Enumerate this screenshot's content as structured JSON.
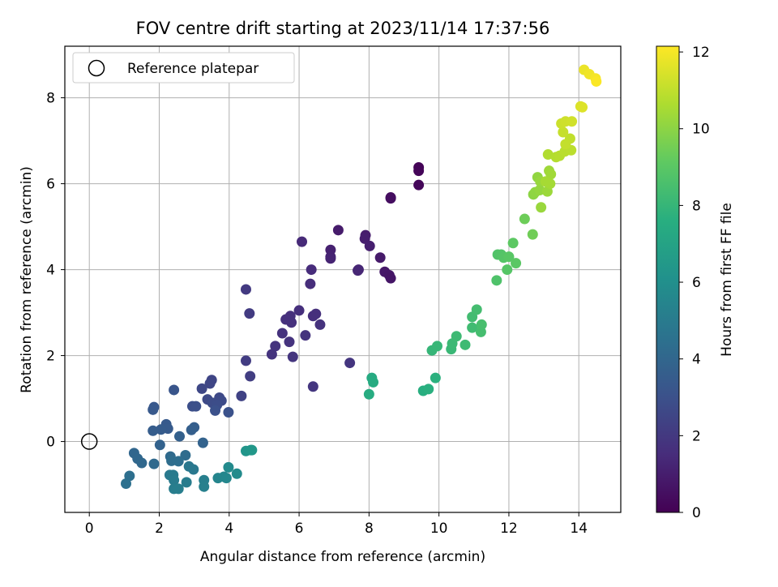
{
  "chart_data": {
    "type": "scatter",
    "title": "FOV centre drift starting at 2023/11/14 17:37:56",
    "xlabel": "Angular distance from reference (arcmin)",
    "ylabel": "Rotation from reference (arcmin)",
    "xlim": [
      -0.7,
      15.2
    ],
    "ylim": [
      -1.65,
      9.2
    ],
    "xticks": [
      "0",
      "2",
      "4",
      "6",
      "8",
      "10",
      "12",
      "14"
    ],
    "yticks": [
      "0",
      "2",
      "4",
      "6",
      "8"
    ],
    "grid": true,
    "legend": {
      "placement": "top-left",
      "entries": [
        "Reference platepar"
      ]
    },
    "reference_point": {
      "x": 0,
      "y": 0
    },
    "colorbar": {
      "label": "Hours from first FF file",
      "range": [
        0,
        12.15
      ],
      "ticks": [
        "0",
        "2",
        "4",
        "6",
        "8",
        "10",
        "12"
      ],
      "colormap": "viridis"
    },
    "points": [
      {
        "x": 9.42,
        "y": 6.38,
        "h": 0.1
      },
      {
        "x": 9.42,
        "y": 6.3,
        "h": 0.15
      },
      {
        "x": 9.42,
        "y": 5.97,
        "h": 0.2
      },
      {
        "x": 8.62,
        "y": 5.68,
        "h": 0.4
      },
      {
        "x": 8.62,
        "y": 5.66,
        "h": 0.45
      },
      {
        "x": 7.12,
        "y": 4.92,
        "h": 0.9
      },
      {
        "x": 7.9,
        "y": 4.8,
        "h": 0.95
      },
      {
        "x": 7.88,
        "y": 4.72,
        "h": 1.0
      },
      {
        "x": 8.02,
        "y": 4.55,
        "h": 1.05
      },
      {
        "x": 6.9,
        "y": 4.46,
        "h": 1.1
      },
      {
        "x": 6.9,
        "y": 4.3,
        "h": 1.15
      },
      {
        "x": 6.9,
        "y": 4.26,
        "h": 1.2
      },
      {
        "x": 8.32,
        "y": 4.28,
        "h": 0.85
      },
      {
        "x": 7.7,
        "y": 4.0,
        "h": 1.25
      },
      {
        "x": 7.68,
        "y": 3.98,
        "h": 1.3
      },
      {
        "x": 8.45,
        "y": 3.95,
        "h": 0.8
      },
      {
        "x": 8.58,
        "y": 3.87,
        "h": 0.75
      },
      {
        "x": 8.62,
        "y": 3.8,
        "h": 0.7
      },
      {
        "x": 6.08,
        "y": 4.65,
        "h": 1.4
      },
      {
        "x": 6.35,
        "y": 4.0,
        "h": 1.5
      },
      {
        "x": 6.32,
        "y": 3.67,
        "h": 1.55
      },
      {
        "x": 6.0,
        "y": 3.05,
        "h": 1.6
      },
      {
        "x": 6.4,
        "y": 2.92,
        "h": 1.62
      },
      {
        "x": 6.48,
        "y": 2.97,
        "h": 1.64
      },
      {
        "x": 5.75,
        "y": 2.92,
        "h": 1.66
      },
      {
        "x": 5.62,
        "y": 2.84,
        "h": 1.68
      },
      {
        "x": 5.78,
        "y": 2.77,
        "h": 1.7
      },
      {
        "x": 6.6,
        "y": 2.72,
        "h": 1.72
      },
      {
        "x": 5.52,
        "y": 2.52,
        "h": 1.74
      },
      {
        "x": 6.18,
        "y": 2.47,
        "h": 1.76
      },
      {
        "x": 5.72,
        "y": 2.32,
        "h": 1.78
      },
      {
        "x": 5.32,
        "y": 2.22,
        "h": 1.8
      },
      {
        "x": 5.22,
        "y": 2.03,
        "h": 1.82
      },
      {
        "x": 5.82,
        "y": 1.97,
        "h": 1.84
      },
      {
        "x": 7.45,
        "y": 1.83,
        "h": 1.86
      },
      {
        "x": 6.4,
        "y": 1.28,
        "h": 1.88
      },
      {
        "x": 4.48,
        "y": 3.54,
        "h": 2.05
      },
      {
        "x": 4.58,
        "y": 2.98,
        "h": 2.1
      },
      {
        "x": 4.48,
        "y": 1.88,
        "h": 2.15
      },
      {
        "x": 4.6,
        "y": 1.52,
        "h": 2.2
      },
      {
        "x": 4.35,
        "y": 1.06,
        "h": 2.4
      },
      {
        "x": 3.5,
        "y": 1.43,
        "h": 2.5
      },
      {
        "x": 3.45,
        "y": 1.35,
        "h": 2.55
      },
      {
        "x": 3.22,
        "y": 1.23,
        "h": 2.6
      },
      {
        "x": 3.72,
        "y": 1.02,
        "h": 2.65
      },
      {
        "x": 3.38,
        "y": 0.98,
        "h": 2.7
      },
      {
        "x": 3.78,
        "y": 0.95,
        "h": 2.75
      },
      {
        "x": 3.52,
        "y": 0.9,
        "h": 2.8
      },
      {
        "x": 3.65,
        "y": 0.85,
        "h": 2.85
      },
      {
        "x": 2.95,
        "y": 0.82,
        "h": 2.9
      },
      {
        "x": 3.05,
        "y": 0.82,
        "h": 2.95
      },
      {
        "x": 3.6,
        "y": 0.72,
        "h": 3.0
      },
      {
        "x": 3.98,
        "y": 0.68,
        "h": 3.05
      },
      {
        "x": 2.42,
        "y": 1.2,
        "h": 3.2
      },
      {
        "x": 1.85,
        "y": 0.8,
        "h": 3.3
      },
      {
        "x": 1.82,
        "y": 0.74,
        "h": 3.35
      },
      {
        "x": 2.2,
        "y": 0.4,
        "h": 3.4
      },
      {
        "x": 2.25,
        "y": 0.3,
        "h": 3.45
      },
      {
        "x": 2.05,
        "y": 0.28,
        "h": 3.5
      },
      {
        "x": 1.82,
        "y": 0.25,
        "h": 3.55
      },
      {
        "x": 3.0,
        "y": 0.33,
        "h": 3.6
      },
      {
        "x": 2.92,
        "y": 0.27,
        "h": 3.65
      },
      {
        "x": 2.58,
        "y": 0.12,
        "h": 3.7
      },
      {
        "x": 2.02,
        "y": -0.08,
        "h": 3.8
      },
      {
        "x": 3.25,
        "y": -0.03,
        "h": 3.85
      },
      {
        "x": 1.28,
        "y": -0.27,
        "h": 4.0
      },
      {
        "x": 1.38,
        "y": -0.4,
        "h": 4.05
      },
      {
        "x": 1.5,
        "y": -0.5,
        "h": 4.1
      },
      {
        "x": 1.85,
        "y": -0.52,
        "h": 4.15
      },
      {
        "x": 2.32,
        "y": -0.35,
        "h": 4.2
      },
      {
        "x": 2.75,
        "y": -0.32,
        "h": 4.25
      },
      {
        "x": 2.35,
        "y": -0.45,
        "h": 4.3
      },
      {
        "x": 2.55,
        "y": -0.46,
        "h": 4.35
      },
      {
        "x": 1.15,
        "y": -0.8,
        "h": 4.4
      },
      {
        "x": 1.05,
        "y": -0.98,
        "h": 4.45
      },
      {
        "x": 2.85,
        "y": -0.58,
        "h": 4.8
      },
      {
        "x": 2.98,
        "y": -0.65,
        "h": 4.85
      },
      {
        "x": 2.3,
        "y": -0.78,
        "h": 4.9
      },
      {
        "x": 2.4,
        "y": -0.78,
        "h": 4.95
      },
      {
        "x": 2.42,
        "y": -0.9,
        "h": 5.0
      },
      {
        "x": 2.78,
        "y": -0.95,
        "h": 5.05
      },
      {
        "x": 2.42,
        "y": -1.1,
        "h": 5.1
      },
      {
        "x": 2.55,
        "y": -1.1,
        "h": 5.15
      },
      {
        "x": 3.28,
        "y": -0.9,
        "h": 5.2
      },
      {
        "x": 3.28,
        "y": -1.05,
        "h": 5.25
      },
      {
        "x": 3.68,
        "y": -0.85,
        "h": 5.5
      },
      {
        "x": 3.85,
        "y": -0.82,
        "h": 5.55
      },
      {
        "x": 3.92,
        "y": -0.85,
        "h": 5.6
      },
      {
        "x": 3.98,
        "y": -0.6,
        "h": 5.75
      },
      {
        "x": 4.22,
        "y": -0.75,
        "h": 5.8
      },
      {
        "x": 4.48,
        "y": -0.22,
        "h": 6.3
      },
      {
        "x": 4.62,
        "y": -0.2,
        "h": 6.35
      },
      {
        "x": 4.65,
        "y": -0.2,
        "h": 6.4
      },
      {
        "x": 8.08,
        "y": 1.48,
        "h": 7.4
      },
      {
        "x": 8.12,
        "y": 1.38,
        "h": 7.45
      },
      {
        "x": 8.0,
        "y": 1.1,
        "h": 7.5
      },
      {
        "x": 9.55,
        "y": 1.18,
        "h": 7.6
      },
      {
        "x": 9.7,
        "y": 1.22,
        "h": 7.65
      },
      {
        "x": 9.9,
        "y": 1.48,
        "h": 7.7
      },
      {
        "x": 9.8,
        "y": 2.12,
        "h": 8.0
      },
      {
        "x": 9.95,
        "y": 2.22,
        "h": 8.05
      },
      {
        "x": 10.35,
        "y": 2.15,
        "h": 8.1
      },
      {
        "x": 10.38,
        "y": 2.28,
        "h": 8.15
      },
      {
        "x": 10.5,
        "y": 2.45,
        "h": 8.2
      },
      {
        "x": 10.75,
        "y": 2.25,
        "h": 8.25
      },
      {
        "x": 10.95,
        "y": 2.65,
        "h": 8.3
      },
      {
        "x": 10.95,
        "y": 2.9,
        "h": 8.35
      },
      {
        "x": 11.08,
        "y": 3.07,
        "h": 8.4
      },
      {
        "x": 11.2,
        "y": 2.55,
        "h": 8.45
      },
      {
        "x": 11.22,
        "y": 2.72,
        "h": 8.5
      },
      {
        "x": 11.65,
        "y": 3.75,
        "h": 8.7
      },
      {
        "x": 11.68,
        "y": 4.35,
        "h": 8.75
      },
      {
        "x": 11.78,
        "y": 4.35,
        "h": 8.8
      },
      {
        "x": 11.85,
        "y": 4.28,
        "h": 8.85
      },
      {
        "x": 11.95,
        "y": 4.0,
        "h": 8.9
      },
      {
        "x": 12.0,
        "y": 4.3,
        "h": 8.95
      },
      {
        "x": 12.2,
        "y": 4.15,
        "h": 9.0
      },
      {
        "x": 12.12,
        "y": 4.62,
        "h": 9.05
      },
      {
        "x": 12.45,
        "y": 5.18,
        "h": 9.4
      },
      {
        "x": 12.68,
        "y": 4.82,
        "h": 9.45
      },
      {
        "x": 12.7,
        "y": 5.75,
        "h": 10.0
      },
      {
        "x": 12.75,
        "y": 5.8,
        "h": 10.05
      },
      {
        "x": 12.82,
        "y": 6.15,
        "h": 10.1
      },
      {
        "x": 12.88,
        "y": 5.85,
        "h": 10.15
      },
      {
        "x": 12.9,
        "y": 6.05,
        "h": 10.2
      },
      {
        "x": 12.92,
        "y": 5.45,
        "h": 10.25
      },
      {
        "x": 13.1,
        "y": 5.82,
        "h": 10.3
      },
      {
        "x": 13.15,
        "y": 6.3,
        "h": 10.35
      },
      {
        "x": 13.2,
        "y": 6.22,
        "h": 10.4
      },
      {
        "x": 13.18,
        "y": 6.0,
        "h": 10.45
      },
      {
        "x": 13.05,
        "y": 6.05,
        "h": 10.5
      },
      {
        "x": 13.12,
        "y": 6.68,
        "h": 10.7
      },
      {
        "x": 13.35,
        "y": 6.62,
        "h": 10.75
      },
      {
        "x": 13.45,
        "y": 6.65,
        "h": 10.8
      },
      {
        "x": 13.6,
        "y": 6.75,
        "h": 10.85
      },
      {
        "x": 13.78,
        "y": 6.78,
        "h": 10.9
      },
      {
        "x": 13.75,
        "y": 7.05,
        "h": 11.0
      },
      {
        "x": 13.62,
        "y": 6.92,
        "h": 11.05
      },
      {
        "x": 13.55,
        "y": 7.2,
        "h": 11.1
      },
      {
        "x": 13.5,
        "y": 7.4,
        "h": 11.2
      },
      {
        "x": 13.62,
        "y": 7.45,
        "h": 11.25
      },
      {
        "x": 13.8,
        "y": 7.45,
        "h": 11.3
      },
      {
        "x": 14.05,
        "y": 7.8,
        "h": 11.5
      },
      {
        "x": 14.1,
        "y": 7.78,
        "h": 11.55
      },
      {
        "x": 14.15,
        "y": 8.65,
        "h": 11.8
      },
      {
        "x": 14.3,
        "y": 8.55,
        "h": 11.9
      },
      {
        "x": 14.48,
        "y": 8.45,
        "h": 12.0
      },
      {
        "x": 14.5,
        "y": 8.38,
        "h": 12.1
      }
    ]
  }
}
